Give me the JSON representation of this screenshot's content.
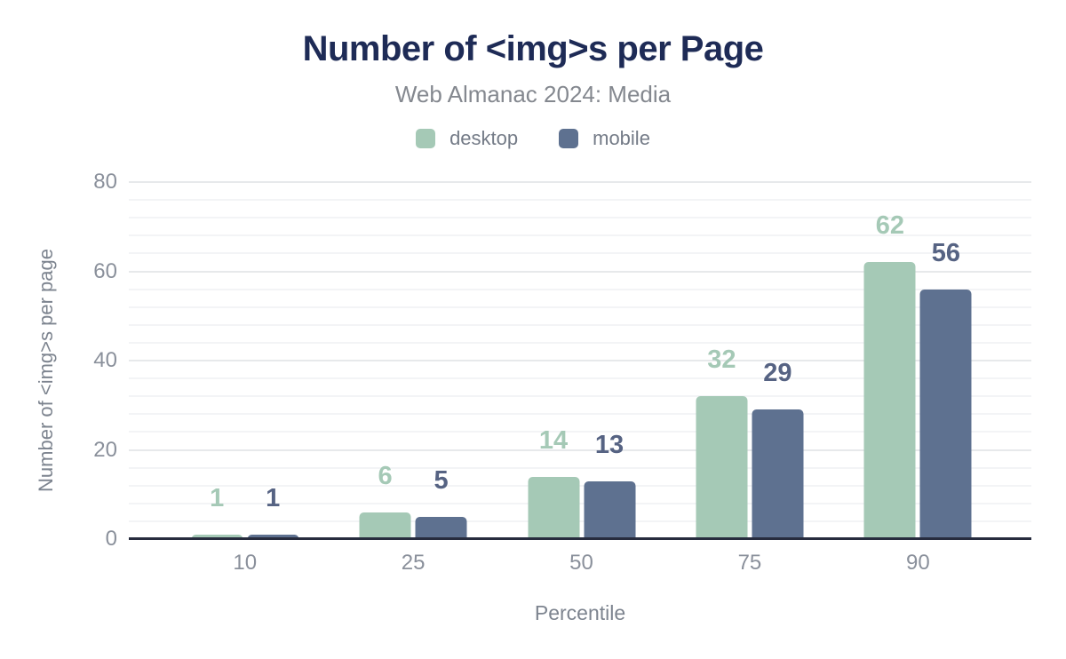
{
  "header": {
    "title": "Number of <img>s per Page",
    "subtitle": "Web Almanac 2024: Media"
  },
  "chart_data": {
    "type": "bar",
    "title": "Number of <img>s per Page",
    "subtitle": "Web Almanac 2024: Media",
    "categories": [
      "10",
      "25",
      "50",
      "75",
      "90"
    ],
    "series": [
      {
        "name": "desktop",
        "values": [
          1,
          6,
          14,
          32,
          62
        ],
        "color": "#a5c9b6",
        "label_color": "#a5c9b6"
      },
      {
        "name": "mobile",
        "values": [
          1,
          5,
          13,
          29,
          56
        ],
        "color": "#5e7190",
        "label_color": "#566383"
      }
    ],
    "xlabel": "Percentile",
    "ylabel": "Number of <img>s per page",
    "ylim": [
      0,
      80
    ],
    "yticks": [
      0,
      20,
      40,
      60,
      80
    ],
    "ytick_step": 20,
    "minor_gridline_step": 4,
    "grid": true,
    "legend_position": "top",
    "value_labels": true
  },
  "colors": {
    "background": "#ffffff",
    "title": "#1e2b56",
    "subtitle": "#84888f",
    "legend_text": "#747b87",
    "axis_text": "#8a909b",
    "axis_title_text": "#7d848f",
    "grid_major": "#e7e9eb",
    "grid_minor": "#f3f4f6",
    "axis_line": "#272c3e"
  }
}
